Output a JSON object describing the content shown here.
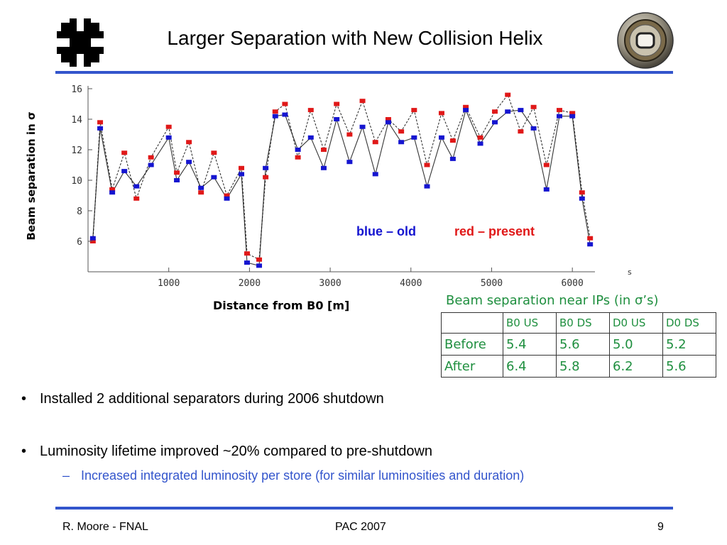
{
  "slide": {
    "title": "Larger Separation with New Collision Helix",
    "legend_old": "blue – old",
    "legend_new": "red – present",
    "bullets": [
      "Installed 2 additional separators during 2006 shutdown",
      "Luminosity lifetime improved ~20% compared to pre-shutdown"
    ],
    "sub_bullet": "Increased integrated luminosity per store (for similar luminosities and duration)",
    "bullet_mark": "•",
    "sub_mark": "–",
    "footer_left": "R. Moore - FNAL",
    "footer_center": "PAC 2007",
    "footer_right": "9",
    "icons": {
      "logo": "fermilab-logo-icon",
      "badge": "magnet-cross-section-icon"
    }
  },
  "table": {
    "title": "Beam separation near IPs (in σ’s)",
    "columns": [
      "",
      "B0 US",
      "B0 DS",
      "D0 US",
      "D0 DS"
    ],
    "rows": [
      {
        "label": "Before",
        "values": [
          "5.4",
          "5.6",
          "5.0",
          "5.2"
        ]
      },
      {
        "label": "After",
        "values": [
          "6.4",
          "5.8",
          "6.2",
          "5.6"
        ]
      }
    ]
  },
  "chart_data": {
    "type": "line",
    "title": "",
    "xlabel": "Distance from B0  [m]",
    "ylabel": "Beam separation in σ",
    "xlim": [
      0,
      6280
    ],
    "ylim": [
      4,
      16
    ],
    "xticks": [
      1000,
      2000,
      3000,
      4000,
      5000,
      6000
    ],
    "yticks": [
      6,
      8,
      10,
      12,
      14,
      16
    ],
    "x_unit_mark": "s",
    "series": [
      {
        "color": "#e01818",
        "x": [
          60,
          150,
          300,
          450,
          600,
          780,
          1000,
          1100,
          1250,
          1400,
          1560,
          1720,
          1900,
          1970,
          2120,
          2200,
          2320,
          2440,
          2600,
          2760,
          2920,
          3080,
          3240,
          3400,
          3560,
          3720,
          3880,
          4040,
          4200,
          4380,
          4520,
          4680,
          4860,
          5040,
          5200,
          5360,
          5520,
          5680,
          5840,
          6000,
          6120,
          6220
        ],
        "y": [
          6,
          13.8,
          9.4,
          11.8,
          8.8,
          11.5,
          13.5,
          10.5,
          12.5,
          9.2,
          11.8,
          9,
          10.8,
          5.2,
          4.8,
          10.2,
          14.5,
          15,
          11.5,
          14.6,
          12,
          15,
          13,
          15.2,
          12.5,
          14,
          13.2,
          14.6,
          11,
          14.4,
          12.6,
          14.8,
          12.8,
          14.5,
          15.6,
          13.2,
          14.8,
          11,
          14.6,
          14.4,
          9.2,
          6.2
        ]
      },
      {
        "color": "#1515d0",
        "x": [
          60,
          150,
          300,
          450,
          600,
          780,
          1000,
          1100,
          1250,
          1400,
          1560,
          1720,
          1900,
          1970,
          2120,
          2200,
          2320,
          2440,
          2600,
          2760,
          2920,
          3080,
          3240,
          3400,
          3560,
          3720,
          3880,
          4040,
          4200,
          4380,
          4520,
          4680,
          4860,
          5040,
          5200,
          5360,
          5520,
          5680,
          5840,
          6000,
          6120,
          6220
        ],
        "y": [
          6.2,
          13.4,
          9.2,
          10.6,
          9.6,
          11,
          12.8,
          10,
          11.2,
          9.5,
          10.2,
          8.8,
          10.4,
          4.6,
          4.4,
          10.8,
          14.2,
          14.3,
          12,
          12.8,
          10.8,
          14,
          11.2,
          13.5,
          10.4,
          13.8,
          12.5,
          12.8,
          9.6,
          12.8,
          11.4,
          14.6,
          12.4,
          13.8,
          14.5,
          14.6,
          13.4,
          9.4,
          14.2,
          14.2,
          8.8,
          5.8
        ]
      }
    ]
  }
}
